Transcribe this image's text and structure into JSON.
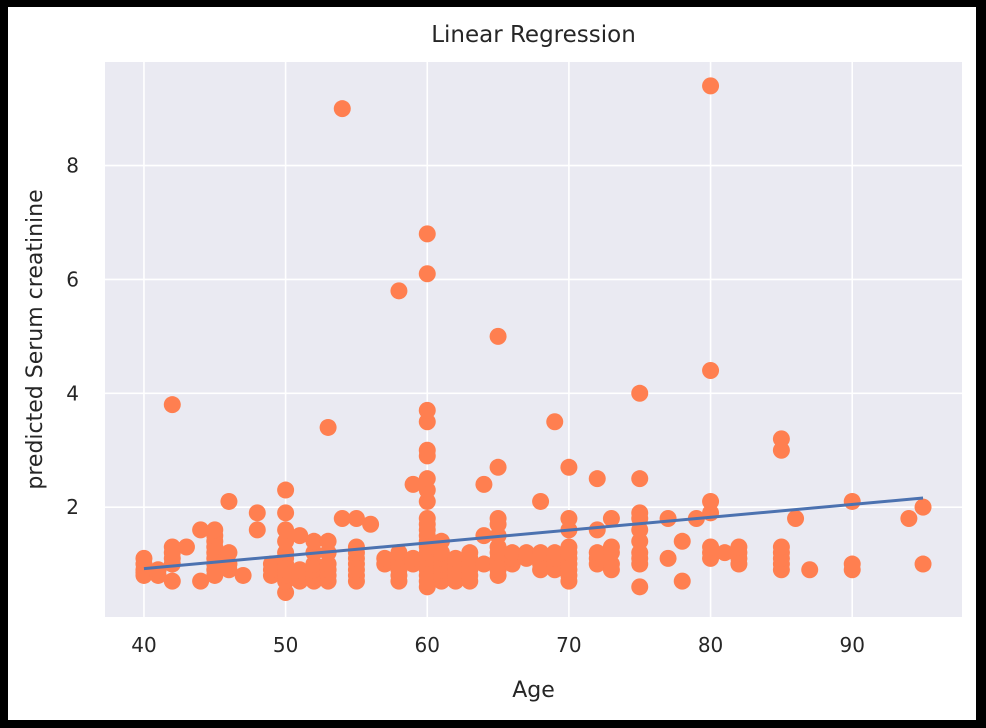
{
  "chart_data": {
    "type": "scatter",
    "title": "Linear Regression",
    "xlabel": "Age",
    "ylabel": "predicted Serum creatinine",
    "xlim": [
      37.25,
      97.75
    ],
    "ylim": [
      0.07,
      9.82
    ],
    "xticks": [
      40,
      50,
      60,
      70,
      80,
      90
    ],
    "yticks": [
      2,
      4,
      6,
      8
    ],
    "grid": true,
    "colors": {
      "background": "#eaeaf2",
      "grid": "#ffffff",
      "points": "#ff7f50",
      "line": "#4c72b0",
      "text": "#262626"
    },
    "series": [
      {
        "kind": "points",
        "points": [
          [
            40,
            0.8
          ],
          [
            40,
            0.9
          ],
          [
            40,
            1.0
          ],
          [
            40,
            1.1
          ],
          [
            40,
            0.85
          ],
          [
            41,
            0.8
          ],
          [
            41,
            0.9
          ],
          [
            42,
            0.7
          ],
          [
            42,
            1.0
          ],
          [
            42,
            1.1
          ],
          [
            42,
            1.2
          ],
          [
            42,
            1.3
          ],
          [
            42,
            3.8
          ],
          [
            43,
            1.3
          ],
          [
            44,
            0.7
          ],
          [
            44,
            1.6
          ],
          [
            45,
            0.8
          ],
          [
            45,
            0.9
          ],
          [
            45,
            1.0
          ],
          [
            45,
            1.1
          ],
          [
            45,
            1.2
          ],
          [
            45,
            1.3
          ],
          [
            45,
            1.4
          ],
          [
            45,
            1.5
          ],
          [
            45,
            1.6
          ],
          [
            46,
            0.9
          ],
          [
            46,
            1.0
          ],
          [
            46,
            1.2
          ],
          [
            46,
            2.1
          ],
          [
            47,
            0.8
          ],
          [
            48,
            1.6
          ],
          [
            48,
            1.9
          ],
          [
            49,
            0.8
          ],
          [
            49,
            0.9
          ],
          [
            49,
            1.0
          ],
          [
            50,
            0.5
          ],
          [
            50,
            0.7
          ],
          [
            50,
            0.8
          ],
          [
            50,
            0.9
          ],
          [
            50,
            1.0
          ],
          [
            50,
            1.1
          ],
          [
            50,
            1.2
          ],
          [
            50,
            1.4
          ],
          [
            50,
            1.6
          ],
          [
            50,
            1.9
          ],
          [
            50,
            2.3
          ],
          [
            51,
            0.7
          ],
          [
            51,
            0.8
          ],
          [
            51,
            0.9
          ],
          [
            51,
            1.5
          ],
          [
            52,
            0.7
          ],
          [
            52,
            0.8
          ],
          [
            52,
            0.9
          ],
          [
            52,
            1.0
          ],
          [
            52,
            1.2
          ],
          [
            52,
            1.4
          ],
          [
            53,
            0.7
          ],
          [
            53,
            0.8
          ],
          [
            53,
            0.9
          ],
          [
            53,
            1.0
          ],
          [
            53,
            1.2
          ],
          [
            53,
            1.4
          ],
          [
            53,
            3.4
          ],
          [
            54,
            1.8
          ],
          [
            54,
            9.0
          ],
          [
            55,
            0.7
          ],
          [
            55,
            0.8
          ],
          [
            55,
            0.9
          ],
          [
            55,
            1.0
          ],
          [
            55,
            1.1
          ],
          [
            55,
            1.2
          ],
          [
            55,
            1.3
          ],
          [
            55,
            1.8
          ],
          [
            56,
            1.7
          ],
          [
            57,
            1.0
          ],
          [
            57,
            1.1
          ],
          [
            58,
            0.7
          ],
          [
            58,
            0.8
          ],
          [
            58,
            0.9
          ],
          [
            58,
            1.0
          ],
          [
            58,
            1.1
          ],
          [
            58,
            1.2
          ],
          [
            58,
            5.8
          ],
          [
            59,
            1.0
          ],
          [
            59,
            1.1
          ],
          [
            59,
            2.4
          ],
          [
            60,
            0.6
          ],
          [
            60,
            0.7
          ],
          [
            60,
            0.8
          ],
          [
            60,
            0.9
          ],
          [
            60,
            1.0
          ],
          [
            60,
            1.1
          ],
          [
            60,
            1.2
          ],
          [
            60,
            1.3
          ],
          [
            60,
            1.4
          ],
          [
            60,
            1.5
          ],
          [
            60,
            1.6
          ],
          [
            60,
            1.7
          ],
          [
            60,
            1.8
          ],
          [
            60,
            2.1
          ],
          [
            60,
            2.3
          ],
          [
            60,
            2.5
          ],
          [
            60,
            2.9
          ],
          [
            60,
            3.0
          ],
          [
            60,
            3.5
          ],
          [
            60,
            3.7
          ],
          [
            60,
            6.1
          ],
          [
            60,
            6.8
          ],
          [
            61,
            0.7
          ],
          [
            61,
            0.8
          ],
          [
            61,
            0.9
          ],
          [
            61,
            1.0
          ],
          [
            61,
            1.1
          ],
          [
            61,
            1.2
          ],
          [
            61,
            1.4
          ],
          [
            62,
            0.7
          ],
          [
            62,
            0.8
          ],
          [
            62,
            0.9
          ],
          [
            62,
            1.0
          ],
          [
            62,
            1.1
          ],
          [
            63,
            0.7
          ],
          [
            63,
            0.8
          ],
          [
            63,
            0.9
          ],
          [
            63,
            1.0
          ],
          [
            63,
            1.1
          ],
          [
            63,
            1.2
          ],
          [
            64,
            1.0
          ],
          [
            64,
            1.5
          ],
          [
            64,
            2.4
          ],
          [
            65,
            0.8
          ],
          [
            65,
            0.9
          ],
          [
            65,
            1.0
          ],
          [
            65,
            1.1
          ],
          [
            65,
            1.2
          ],
          [
            65,
            1.3
          ],
          [
            65,
            1.5
          ],
          [
            65,
            1.7
          ],
          [
            65,
            1.8
          ],
          [
            65,
            2.7
          ],
          [
            65,
            5.0
          ],
          [
            66,
            1.0
          ],
          [
            66,
            1.1
          ],
          [
            66,
            1.2
          ],
          [
            67,
            1.1
          ],
          [
            67,
            1.2
          ],
          [
            68,
            0.9
          ],
          [
            68,
            1.0
          ],
          [
            68,
            1.2
          ],
          [
            68,
            2.1
          ],
          [
            69,
            0.9
          ],
          [
            69,
            1.0
          ],
          [
            69,
            1.1
          ],
          [
            69,
            1.2
          ],
          [
            69,
            3.5
          ],
          [
            70,
            0.7
          ],
          [
            70,
            0.8
          ],
          [
            70,
            0.9
          ],
          [
            70,
            1.0
          ],
          [
            70,
            1.1
          ],
          [
            70,
            1.2
          ],
          [
            70,
            1.3
          ],
          [
            70,
            1.6
          ],
          [
            70,
            1.8
          ],
          [
            70,
            2.7
          ],
          [
            72,
            1.0
          ],
          [
            72,
            1.1
          ],
          [
            72,
            1.2
          ],
          [
            72,
            1.6
          ],
          [
            72,
            2.5
          ],
          [
            73,
            0.9
          ],
          [
            73,
            1.0
          ],
          [
            73,
            1.2
          ],
          [
            73,
            1.3
          ],
          [
            73,
            1.8
          ],
          [
            75,
            0.6
          ],
          [
            75,
            1.0
          ],
          [
            75,
            1.1
          ],
          [
            75,
            1.2
          ],
          [
            75,
            1.4
          ],
          [
            75,
            1.6
          ],
          [
            75,
            1.8
          ],
          [
            75,
            1.9
          ],
          [
            75,
            2.5
          ],
          [
            75,
            4.0
          ],
          [
            77,
            1.1
          ],
          [
            77,
            1.8
          ],
          [
            78,
            0.7
          ],
          [
            78,
            1.4
          ],
          [
            79,
            1.8
          ],
          [
            80,
            1.1
          ],
          [
            80,
            1.2
          ],
          [
            80,
            1.3
          ],
          [
            80,
            1.9
          ],
          [
            80,
            2.1
          ],
          [
            80,
            4.4
          ],
          [
            80,
            9.4
          ],
          [
            81,
            1.2
          ],
          [
            82,
            1.0
          ],
          [
            82,
            1.1
          ],
          [
            82,
            1.2
          ],
          [
            82,
            1.3
          ],
          [
            85,
            0.9
          ],
          [
            85,
            1.0
          ],
          [
            85,
            1.1
          ],
          [
            85,
            1.2
          ],
          [
            85,
            1.3
          ],
          [
            85,
            3.0
          ],
          [
            85,
            3.2
          ],
          [
            86,
            1.8
          ],
          [
            87,
            0.9
          ],
          [
            90,
            0.9
          ],
          [
            90,
            1.0
          ],
          [
            90,
            2.1
          ],
          [
            94,
            1.8
          ],
          [
            95,
            1.0
          ],
          [
            95,
            2.0
          ]
        ]
      },
      {
        "kind": "line",
        "points": [
          [
            40,
            0.92
          ],
          [
            95,
            2.16
          ]
        ]
      }
    ]
  }
}
